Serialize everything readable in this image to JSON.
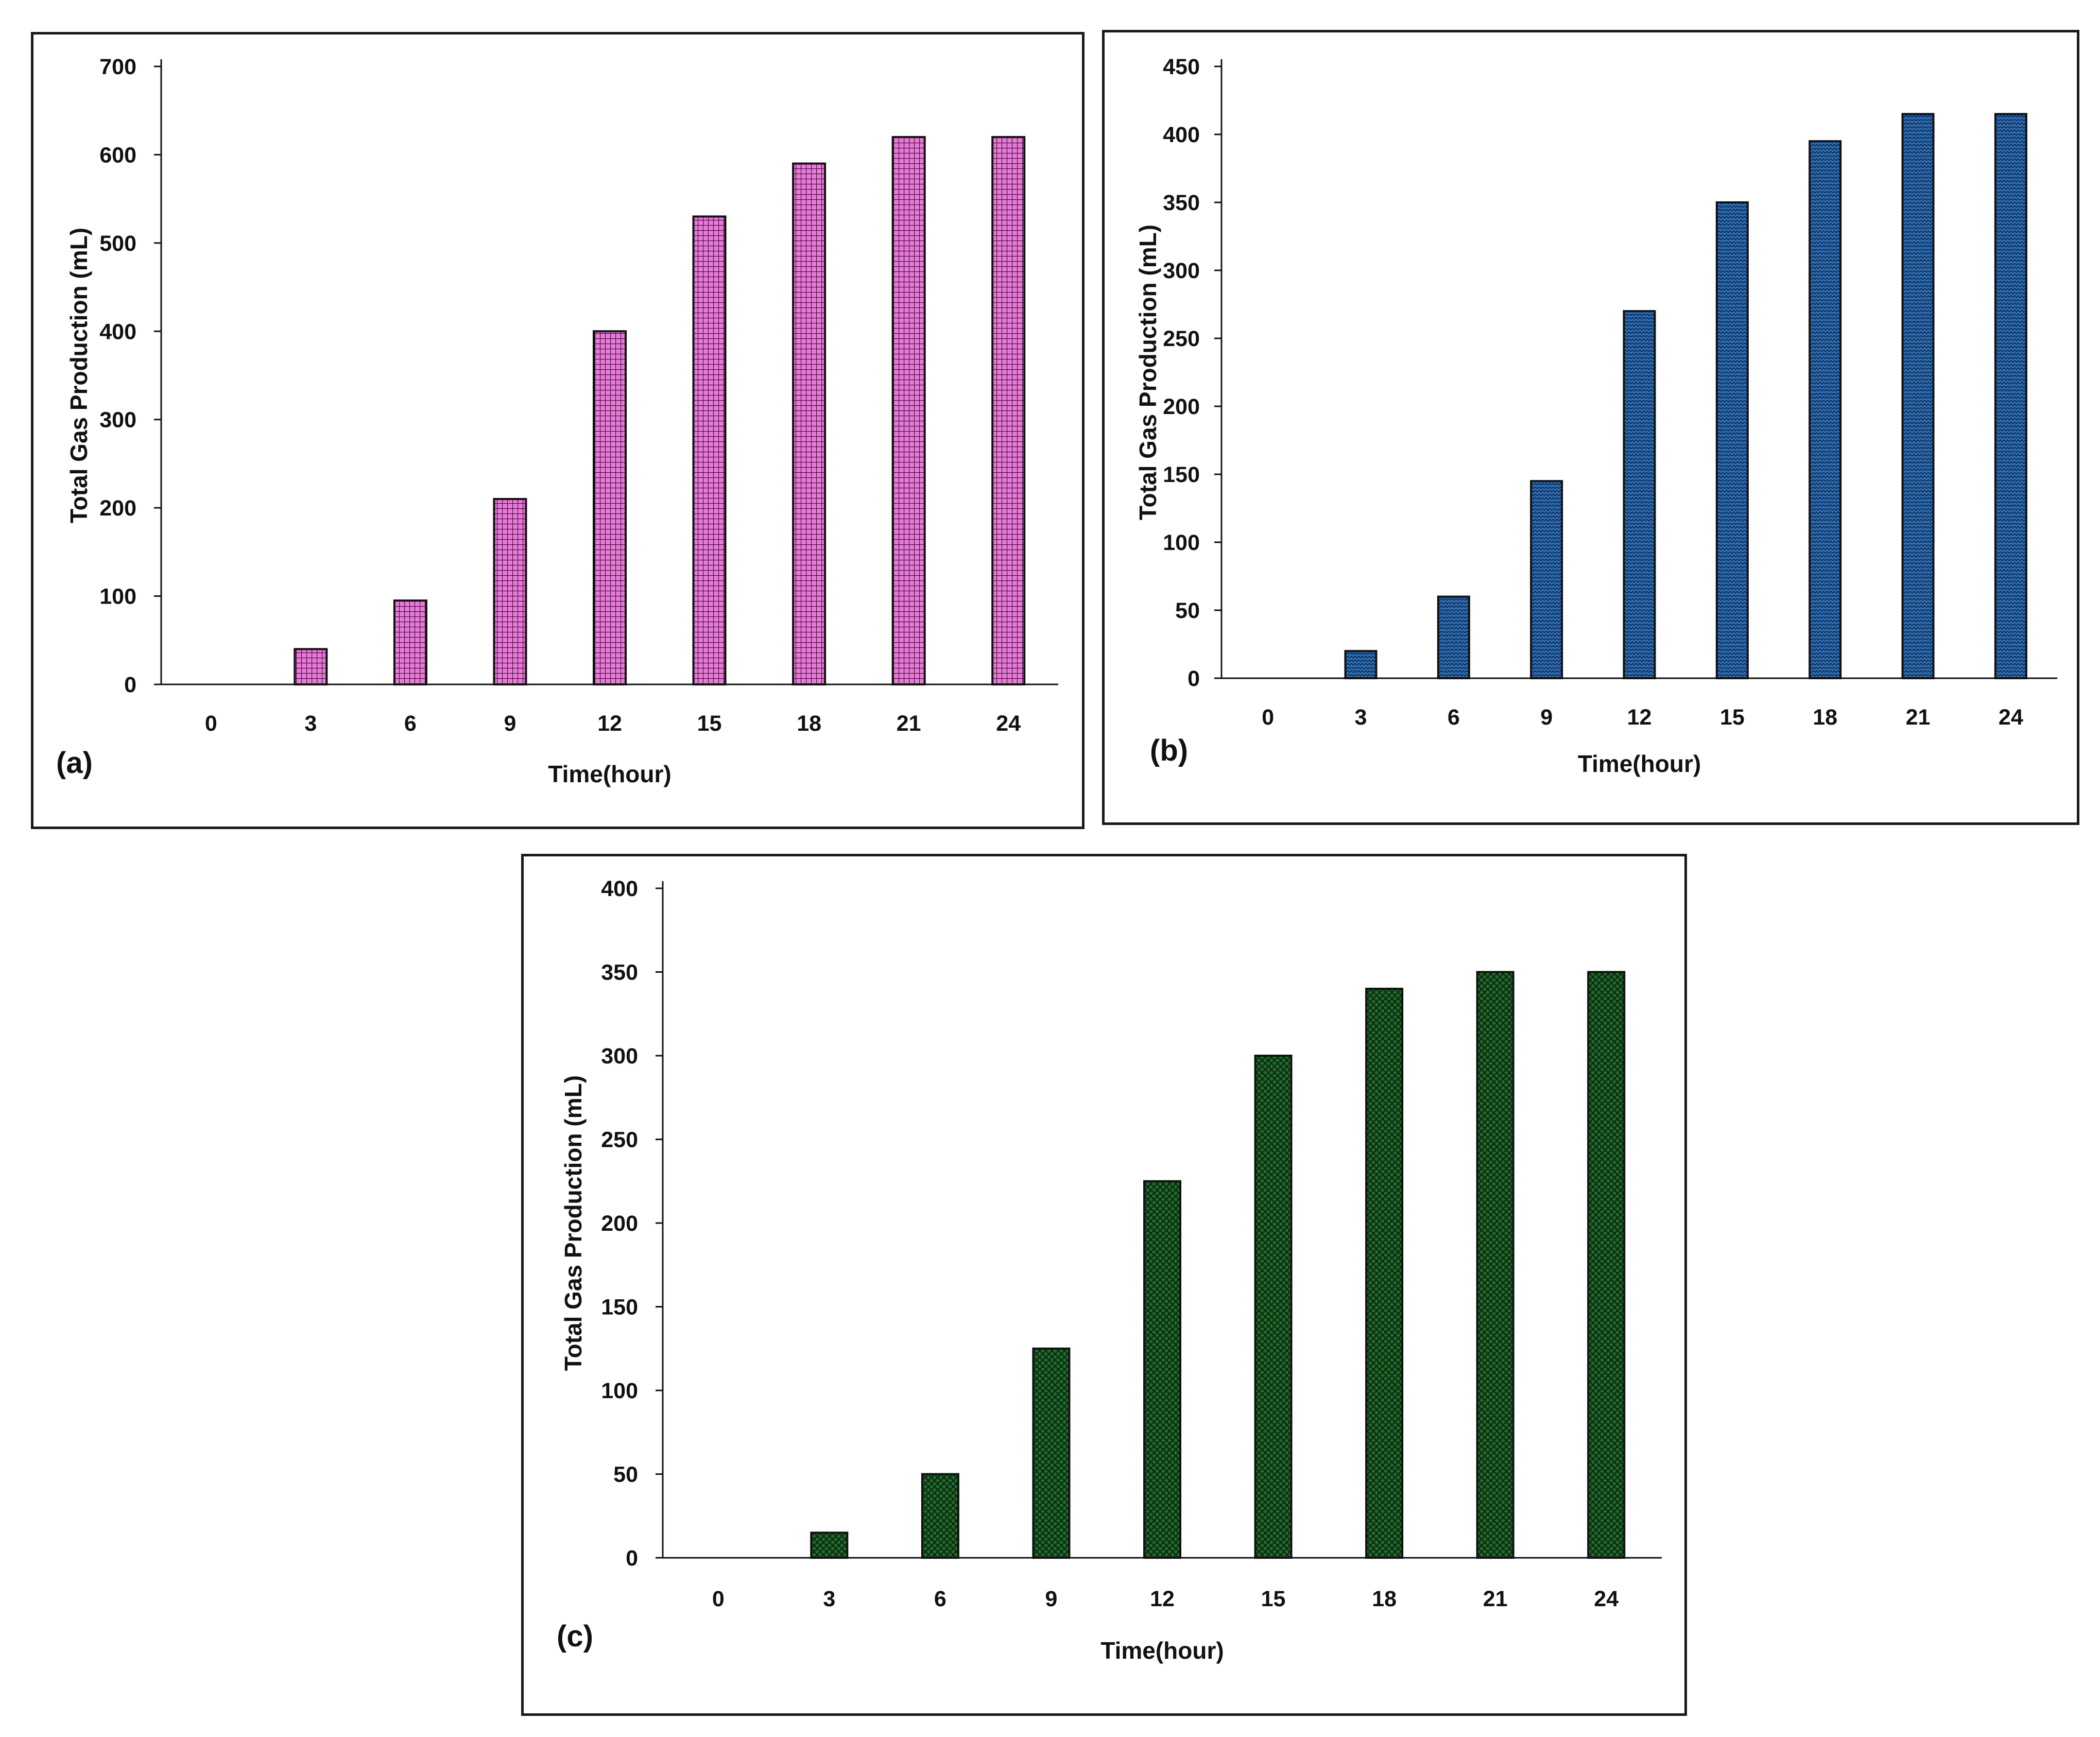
{
  "figure": {
    "panels": [
      "a",
      "b",
      "c"
    ]
  },
  "chart_data": [
    {
      "id": "a",
      "type": "bar",
      "panel_label": "(a)",
      "title": "",
      "xlabel": "Time(hour)",
      "ylabel": "Total Gas Production (mL)",
      "categories": [
        "0",
        "3",
        "6",
        "9",
        "12",
        "15",
        "18",
        "21",
        "24"
      ],
      "values": [
        0,
        40,
        95,
        210,
        400,
        530,
        590,
        620,
        620
      ],
      "ylim": [
        0,
        700
      ],
      "yticks": [
        0,
        100,
        200,
        300,
        400,
        500,
        600,
        700
      ],
      "grid": false,
      "color": "#e879d9",
      "pattern_color": "#3a1030",
      "pattern": "grid"
    },
    {
      "id": "b",
      "type": "bar",
      "panel_label": "(b)",
      "title": "",
      "xlabel": "Time(hour)",
      "ylabel": "Total Gas Production (mL)",
      "categories": [
        "0",
        "3",
        "6",
        "9",
        "12",
        "15",
        "18",
        "21",
        "24"
      ],
      "values": [
        0,
        20,
        60,
        145,
        270,
        350,
        395,
        415,
        415
      ],
      "ylim": [
        0,
        450
      ],
      "yticks": [
        0,
        50,
        100,
        150,
        200,
        250,
        300,
        350,
        400,
        450
      ],
      "grid": false,
      "color": "#2f6fb8",
      "pattern_color": "#0d2a4d",
      "pattern": "zigzag"
    },
    {
      "id": "c",
      "type": "bar",
      "panel_label": "(c)",
      "title": "",
      "xlabel": "Time(hour)",
      "ylabel": "Total Gas Production (mL)",
      "categories": [
        "0",
        "3",
        "6",
        "9",
        "12",
        "15",
        "18",
        "21",
        "24"
      ],
      "values": [
        0,
        15,
        50,
        125,
        225,
        300,
        340,
        350,
        350
      ],
      "ylim": [
        0,
        400
      ],
      "yticks": [
        0,
        50,
        100,
        150,
        200,
        250,
        300,
        350,
        400
      ],
      "grid": false,
      "color": "#1e6b2a",
      "pattern_color": "#0a1f0d",
      "pattern": "diamond"
    }
  ]
}
